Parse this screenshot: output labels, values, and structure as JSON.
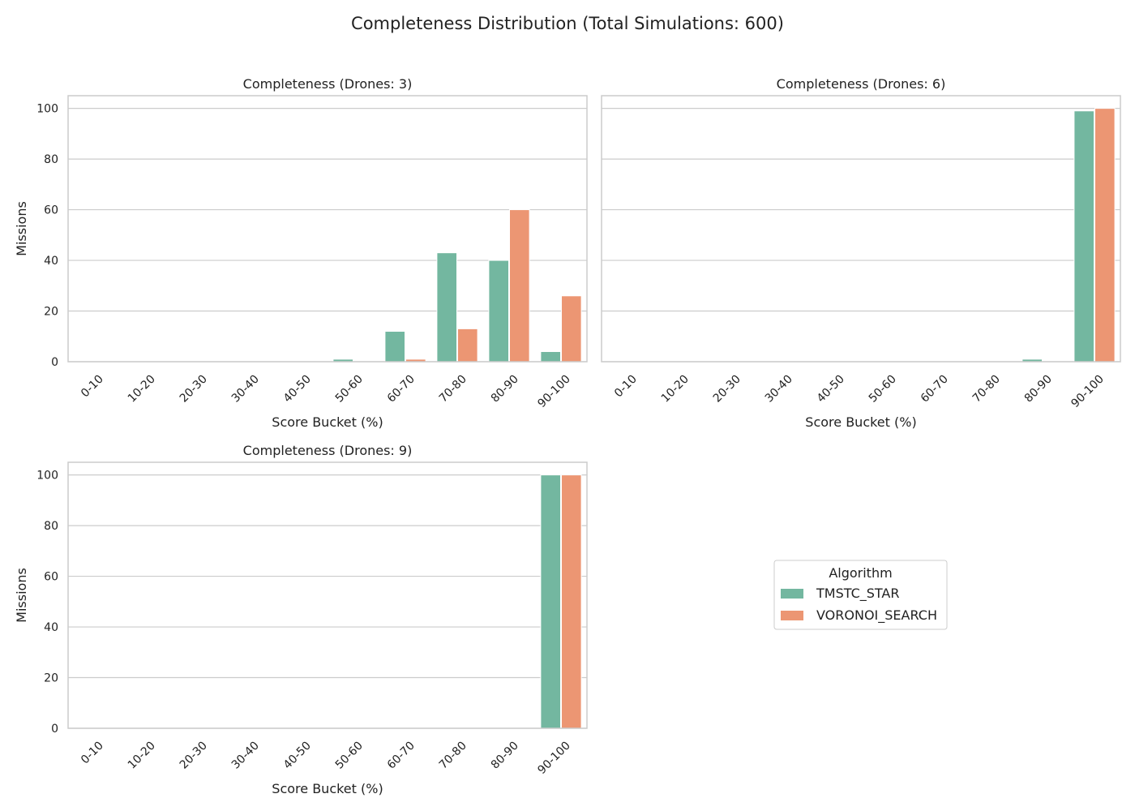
{
  "figure": {
    "title": "Completeness Distribution (Total Simulations: 600)"
  },
  "legend": {
    "title": "Algorithm",
    "placement": "center of empty bottom-right panel"
  },
  "colors": {
    "TMSTC_STAR": "#73b7a0",
    "VORONOI_SEARCH": "#ec9673",
    "grid": "#cccccc",
    "spine": "#cccccc"
  },
  "chart_data": [
    {
      "type": "bar",
      "title": "Completeness (Drones: 3)",
      "xlabel": "Score Bucket (%)",
      "ylabel": "Missions",
      "categories": [
        "0-10",
        "10-20",
        "20-30",
        "30-40",
        "40-50",
        "50-60",
        "60-70",
        "70-80",
        "80-90",
        "90-100"
      ],
      "series": [
        {
          "name": "TMSTC_STAR",
          "values": [
            0,
            0,
            0,
            0,
            0,
            1,
            12,
            43,
            40,
            4
          ]
        },
        {
          "name": "VORONOI_SEARCH",
          "values": [
            0,
            0,
            0,
            0,
            0,
            0,
            1,
            13,
            60,
            26
          ]
        }
      ],
      "ylim": [
        0,
        105
      ],
      "yticks": [
        0,
        20,
        40,
        60,
        80,
        100
      ],
      "grid": true
    },
    {
      "type": "bar",
      "title": "Completeness (Drones: 6)",
      "xlabel": "Score Bucket (%)",
      "ylabel": "",
      "categories": [
        "0-10",
        "10-20",
        "20-30",
        "30-40",
        "40-50",
        "50-60",
        "60-70",
        "70-80",
        "80-90",
        "90-100"
      ],
      "series": [
        {
          "name": "TMSTC_STAR",
          "values": [
            0,
            0,
            0,
            0,
            0,
            0,
            0,
            0,
            1,
            99
          ]
        },
        {
          "name": "VORONOI_SEARCH",
          "values": [
            0,
            0,
            0,
            0,
            0,
            0,
            0,
            0,
            0,
            100
          ]
        }
      ],
      "ylim": [
        0,
        105
      ],
      "yticks": [],
      "grid": true
    },
    {
      "type": "bar",
      "title": "Completeness (Drones: 9)",
      "xlabel": "Score Bucket (%)",
      "ylabel": "Missions",
      "categories": [
        "0-10",
        "10-20",
        "20-30",
        "30-40",
        "40-50",
        "50-60",
        "60-70",
        "70-80",
        "80-90",
        "90-100"
      ],
      "series": [
        {
          "name": "TMSTC_STAR",
          "values": [
            0,
            0,
            0,
            0,
            0,
            0,
            0,
            0,
            0,
            100
          ]
        },
        {
          "name": "VORONOI_SEARCH",
          "values": [
            0,
            0,
            0,
            0,
            0,
            0,
            0,
            0,
            0,
            100
          ]
        }
      ],
      "ylim": [
        0,
        105
      ],
      "yticks": [
        0,
        20,
        40,
        60,
        80,
        100
      ],
      "grid": true
    }
  ]
}
